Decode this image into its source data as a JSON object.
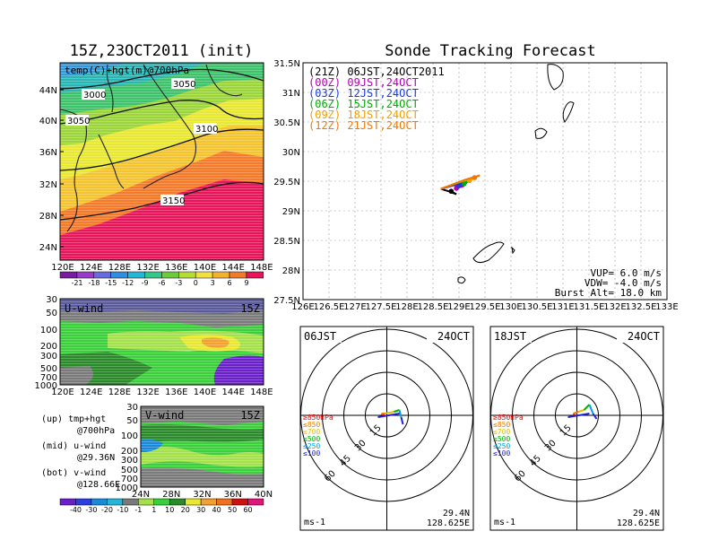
{
  "left_title": "15Z,23OCT2011 (init)",
  "right_title": "Sonde Tracking Forecast",
  "map_label": "temp(C)+hgt(m)@700hPa",
  "contours": [
    "3000",
    "3050",
    "3050",
    "3100",
    "3150"
  ],
  "map_lat_ticks": [
    "44N",
    "40N",
    "36N",
    "32N",
    "28N",
    "24N"
  ],
  "map_lon_ticks": [
    "120E",
    "124E",
    "128E",
    "132E",
    "136E",
    "140E",
    "144E",
    "148E"
  ],
  "temp_colorbar": [
    "-21",
    "-18",
    "-15",
    "-12",
    "-9",
    "-6",
    "-3",
    "0",
    "3",
    "6",
    "9"
  ],
  "uwind": {
    "label": "U-wind",
    "time": "15Z",
    "p_ticks": [
      "30",
      "50",
      "100",
      "200",
      "300",
      "500",
      "700",
      "1000"
    ],
    "lon_ticks": [
      "120E",
      "124E",
      "128E",
      "132E",
      "136E",
      "140E",
      "144E",
      "148E"
    ]
  },
  "vwind": {
    "label": "V-wind",
    "time": "15Z",
    "p_ticks": [
      "30",
      "50",
      "100",
      "200",
      "300",
      "500",
      "700",
      "1000"
    ],
    "lat_ticks": [
      "24N",
      "28N",
      "32N",
      "36N",
      "40N"
    ]
  },
  "wind_colorbar": [
    "-40",
    "-30",
    "-20",
    "-10",
    "-1",
    "1",
    "10",
    "20",
    "30",
    "40",
    "50",
    "60"
  ],
  "legend_notes": [
    [
      "(up) tmp+hgt",
      "@700hPa"
    ],
    [
      "(mid) u-wind",
      "@29.36N"
    ],
    [
      "(bot) v-wind",
      "@128.66E"
    ]
  ],
  "track": {
    "lat_ticks": [
      "31.5N",
      "31N",
      "30.5N",
      "30N",
      "29.5N",
      "29N",
      "28.5N",
      "28N",
      "27.5N"
    ],
    "lon_ticks": [
      "126E",
      "126.5E",
      "127E",
      "127.5E",
      "128E",
      "128.5E",
      "129E",
      "129.5E",
      "130E",
      "130.5E",
      "131E",
      "131.5E",
      "132E",
      "132.5E",
      "133E"
    ],
    "legend": [
      {
        "text": "(21Z)  06JST,24OCT2011",
        "color": "#000000"
      },
      {
        "text": "(00Z)  09JST,24OCT",
        "color": "#b000b0"
      },
      {
        "text": "(03Z)  12JST,24OCT",
        "color": "#1a3adc"
      },
      {
        "text": "(06Z)  15JST,24OCT",
        "color": "#00aa00"
      },
      {
        "text": "(09Z)  18JST,24OCT",
        "color": "#f0a000"
      },
      {
        "text": "(12Z)  21JST,24OCT",
        "color": "#f07800"
      }
    ],
    "params": [
      "VUP=  6.0  m/s",
      "VDW= -4.0  m/s",
      "Burst Alt=  18.0  km"
    ]
  },
  "chart_data": [
    {
      "type": "line",
      "title": "Sonde Tracking Forecast",
      "xlim": [
        126,
        133
      ],
      "ylim": [
        27.5,
        31.5
      ],
      "series": [
        {
          "name": "(21Z)  06JST,24OCT2011",
          "color": "#000000",
          "x": [
            128.65,
            128.8,
            128.95,
            128.85
          ],
          "y": [
            29.37,
            29.33,
            29.28,
            29.33
          ]
        },
        {
          "name": "(00Z)  09JST,24OCT",
          "color": "#b000b0",
          "x": [
            128.65,
            128.9,
            129.1,
            128.95
          ],
          "y": [
            29.37,
            29.43,
            29.42,
            29.38
          ]
        },
        {
          "name": "(03Z)  12JST,24OCT",
          "color": "#1a3adc",
          "x": [
            128.65,
            128.95,
            129.15,
            129.0
          ],
          "y": [
            29.37,
            29.45,
            29.47,
            29.43
          ]
        },
        {
          "name": "(06Z)  15JST,24OCT",
          "color": "#00aa00",
          "x": [
            128.65,
            129.0,
            129.2,
            129.1
          ],
          "y": [
            29.37,
            29.48,
            29.5,
            29.46
          ]
        },
        {
          "name": "(09Z)  18JST,24OCT",
          "color": "#f0a000",
          "x": [
            128.65,
            129.05,
            129.3,
            129.2
          ],
          "y": [
            29.37,
            29.5,
            29.55,
            29.51
          ]
        },
        {
          "name": "(12Z)  21JST,24OCT",
          "color": "#f07800",
          "x": [
            128.65,
            129.1,
            129.4,
            129.3
          ],
          "y": [
            29.37,
            29.52,
            29.6,
            29.56
          ]
        }
      ]
    }
  ],
  "hodo_left": {
    "time": "06JST",
    "date": "24OCT",
    "unit": "ms-1",
    "lat": "29.4N",
    "lon": "128.625E",
    "rings": [
      "15",
      "30",
      "45",
      "60"
    ],
    "levels": [
      "≥850hPa",
      "≤850",
      "≤700",
      "≤500",
      "≤250",
      "≤100"
    ]
  },
  "hodo_right": {
    "time": "18JST",
    "date": "24OCT",
    "unit": "ms-1",
    "lat": "29.4N",
    "lon": "128.625E",
    "rings": [
      "15",
      "30",
      "45",
      "60"
    ],
    "levels": [
      "≥850hPa",
      "≤850",
      "≤700",
      "≤500",
      "≤250",
      "≤100"
    ]
  },
  "colors": {
    "level_colors": [
      "#e01010",
      "#f08000",
      "#e0c000",
      "#00b000",
      "#00a0e0",
      "#2020e0"
    ]
  }
}
